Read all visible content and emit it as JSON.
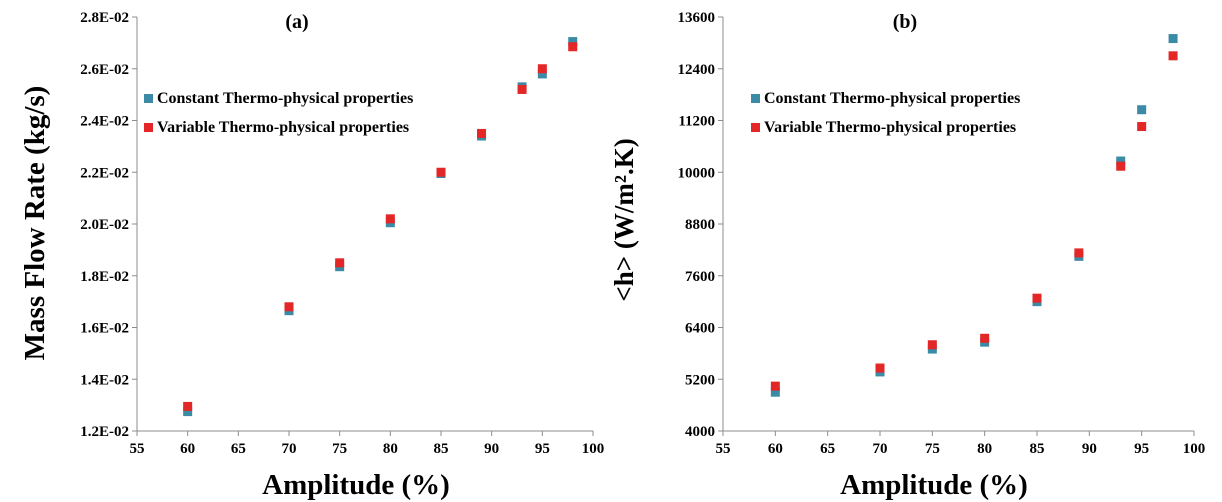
{
  "chart_data": [
    {
      "type": "scatter",
      "panel_label": "(a)",
      "xlabel": "Amplitude (%)",
      "ylabel": "Mass Flow Rate (kg/s)",
      "xlim": [
        55,
        100
      ],
      "ylim": [
        0.012,
        0.028
      ],
      "x_ticks": [
        "55",
        "60",
        "65",
        "70",
        "75",
        "80",
        "85",
        "90",
        "95",
        "100"
      ],
      "x_tick_values": [
        55,
        60,
        65,
        70,
        75,
        80,
        85,
        90,
        95,
        100
      ],
      "y_ticks": [
        "1.2E-02",
        "1.4E-02",
        "1.6E-02",
        "1.8E-02",
        "2.0E-02",
        "2.2E-02",
        "2.4E-02",
        "2.6E-02",
        "2.8E-02"
      ],
      "y_tick_values": [
        0.012,
        0.014,
        0.016,
        0.018,
        0.02,
        0.022,
        0.024,
        0.026,
        0.028
      ],
      "grid": false,
      "legend_position": "upper-left",
      "series": [
        {
          "name": "Constant Thermo-physical properties",
          "color": "#3b8aa6",
          "x": [
            60,
            70,
            75,
            80,
            85,
            89,
            93,
            95,
            98
          ],
          "y": [
            0.01275,
            0.01665,
            0.01835,
            0.02005,
            0.02195,
            0.0234,
            0.0253,
            0.0258,
            0.02705
          ]
        },
        {
          "name": "Variable Thermo-physical properties",
          "color": "#e32626",
          "x": [
            60,
            70,
            75,
            80,
            85,
            89,
            93,
            95,
            98
          ],
          "y": [
            0.01295,
            0.0168,
            0.0185,
            0.0202,
            0.022,
            0.0235,
            0.0252,
            0.026,
            0.02685
          ]
        }
      ]
    },
    {
      "type": "scatter",
      "panel_label": "(b)",
      "xlabel": "Amplitude (%)",
      "ylabel": "<h> (W/m².K)",
      "xlim": [
        55,
        100
      ],
      "ylim": [
        4000,
        13600
      ],
      "x_ticks": [
        "55",
        "60",
        "65",
        "70",
        "75",
        "80",
        "85",
        "90",
        "95",
        "100"
      ],
      "x_tick_values": [
        55,
        60,
        65,
        70,
        75,
        80,
        85,
        90,
        95,
        100
      ],
      "y_ticks": [
        "4000",
        "5200",
        "6400",
        "7600",
        "8800",
        "10000",
        "11200",
        "12400",
        "13600"
      ],
      "y_tick_values": [
        4000,
        5200,
        6400,
        7600,
        8800,
        10000,
        11200,
        12400,
        13600
      ],
      "grid": false,
      "legend_position": "upper-left",
      "series": [
        {
          "name": "Constant Thermo-physical properties",
          "color": "#3b8aa6",
          "x": [
            60,
            70,
            75,
            80,
            85,
            89,
            93,
            95,
            98
          ],
          "y": [
            4900,
            5370,
            5900,
            6060,
            7000,
            8050,
            10260,
            11450,
            13100
          ]
        },
        {
          "name": "Variable Thermo-physical properties",
          "color": "#e32626",
          "x": [
            60,
            70,
            75,
            80,
            85,
            89,
            93,
            95,
            98
          ],
          "y": [
            5040,
            5460,
            6000,
            6150,
            7080,
            8130,
            10140,
            11060,
            12700
          ]
        }
      ]
    }
  ]
}
